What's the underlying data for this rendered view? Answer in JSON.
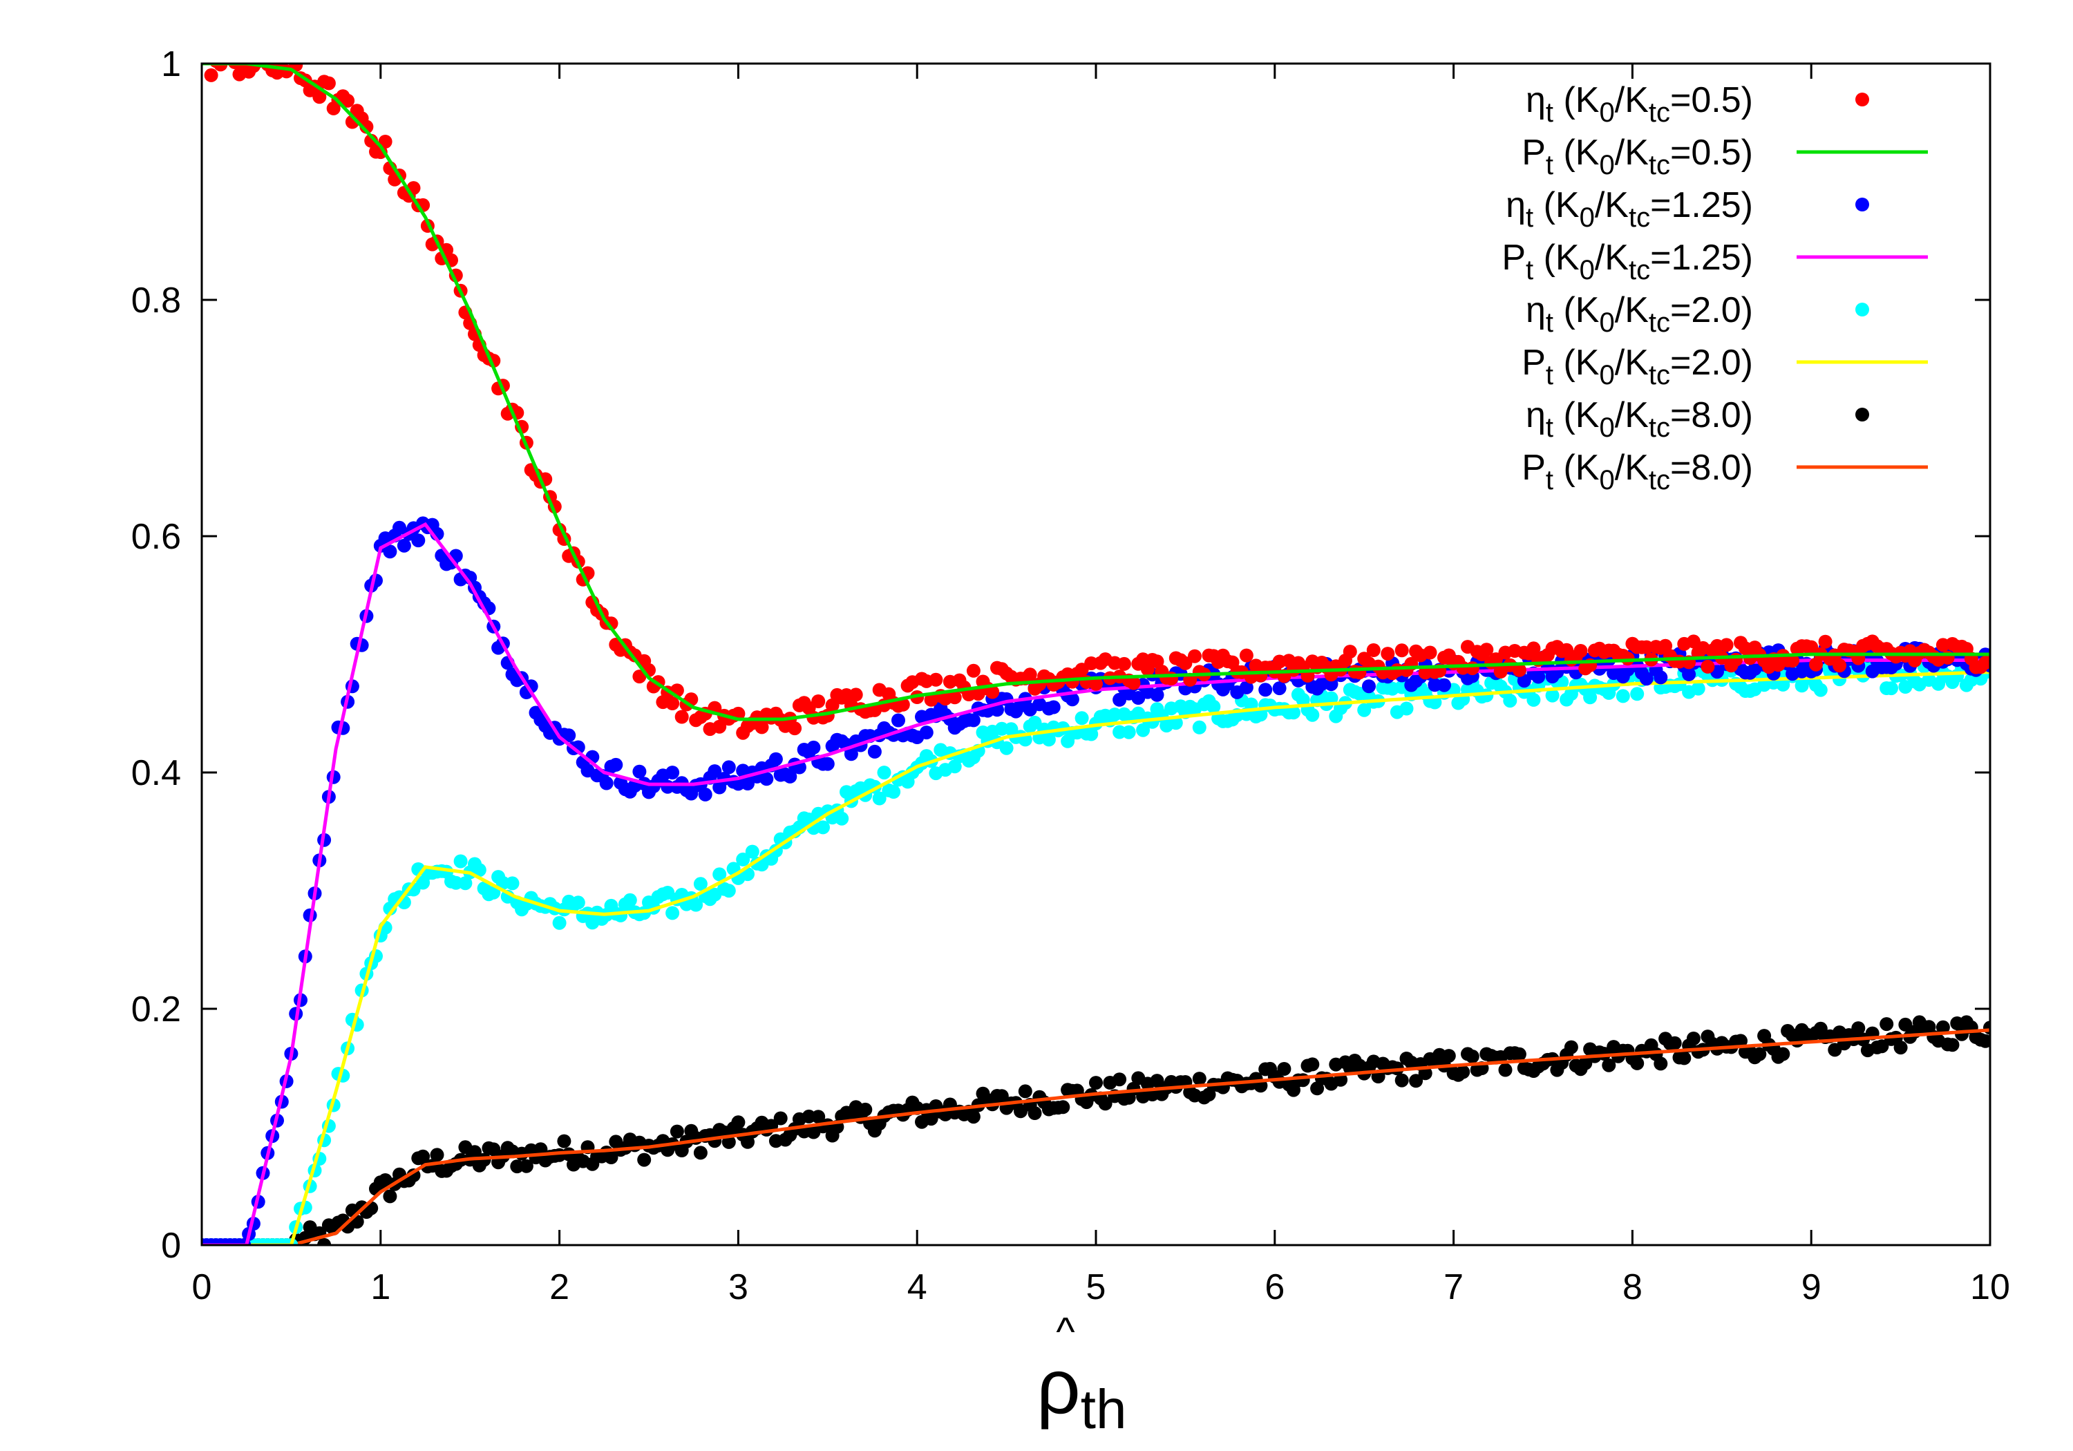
{
  "chart_data": {
    "type": "scatter",
    "title": "",
    "xlabel": {
      "hat": "^",
      "main": "ρ",
      "sub": "th"
    },
    "ylabel": "",
    "xlim": [
      0,
      10
    ],
    "ylim": [
      0,
      1
    ],
    "grid": false,
    "legend_position": "top-right",
    "x_ticks": [
      "0",
      "1",
      "2",
      "3",
      "4",
      "5",
      "6",
      "7",
      "8",
      "9",
      "10"
    ],
    "y_ticks": [
      "0",
      "0.2",
      "0.4",
      "0.6",
      "0.8",
      "1"
    ],
    "x": [
      0,
      0.25,
      0.5,
      0.75,
      1,
      1.25,
      1.5,
      1.75,
      2,
      2.25,
      2.5,
      2.75,
      3,
      3.25,
      3.5,
      4,
      4.5,
      5,
      6,
      7,
      8,
      9,
      10
    ],
    "series": [
      {
        "name": "η_t (K_0/K_tc=0.5)",
        "legend": {
          "pre": "η",
          "sub1": "t",
          "mid": " (K",
          "sub2": "0",
          "slash": "/K",
          "sub3": "tc",
          "post": "=0.5)"
        },
        "kind": "points",
        "color": "#ff0000",
        "values": [
          1.0,
          1.0,
          0.995,
          0.97,
          0.93,
          0.87,
          0.79,
          0.7,
          0.61,
          0.53,
          0.48,
          0.45,
          0.44,
          0.445,
          0.455,
          0.47,
          0.48,
          0.485,
          0.49,
          0.495,
          0.5,
          0.5,
          0.5
        ]
      },
      {
        "name": "P_t (K_0/K_tc=0.5)",
        "legend": {
          "pre": "P",
          "sub1": "t",
          "mid": " (K",
          "sub2": "0",
          "slash": "/K",
          "sub3": "tc",
          "post": "=0.5)"
        },
        "kind": "line",
        "color": "#00e000",
        "values": [
          1.0,
          1.0,
          0.995,
          0.97,
          0.93,
          0.87,
          0.79,
          0.7,
          0.61,
          0.53,
          0.48,
          0.455,
          0.445,
          0.445,
          0.45,
          0.465,
          0.475,
          0.48,
          0.485,
          0.49,
          0.495,
          0.5,
          0.5
        ]
      },
      {
        "name": "η_t (K_0/K_tc=1.25)",
        "legend": {
          "pre": "η",
          "sub1": "t",
          "mid": " (K",
          "sub2": "0",
          "slash": "/K",
          "sub3": "tc",
          "post": "=1.25)"
        },
        "kind": "points",
        "color": "#0000ff",
        "values": [
          0.0,
          0.0,
          0.16,
          0.42,
          0.59,
          0.61,
          0.56,
          0.49,
          0.43,
          0.4,
          0.39,
          0.39,
          0.395,
          0.405,
          0.415,
          0.44,
          0.46,
          0.47,
          0.48,
          0.485,
          0.49,
          0.495,
          0.495
        ]
      },
      {
        "name": "P_t (K_0/K_tc=1.25)",
        "legend": {
          "pre": "P",
          "sub1": "t",
          "mid": " (K",
          "sub2": "0",
          "slash": "/K",
          "sub3": "tc",
          "post": "=1.25)"
        },
        "kind": "line",
        "color": "#ff00ff",
        "values": [
          0.0,
          0.0,
          0.16,
          0.42,
          0.59,
          0.61,
          0.56,
          0.49,
          0.43,
          0.4,
          0.39,
          0.39,
          0.395,
          0.405,
          0.415,
          0.44,
          0.46,
          0.47,
          0.48,
          0.485,
          0.49,
          0.495,
          0.495
        ]
      },
      {
        "name": "η_t (K_0/K_tc=2.0)",
        "legend": {
          "pre": "η",
          "sub1": "t",
          "mid": " (K",
          "sub2": "0",
          "slash": "/K",
          "sub3": "tc",
          "post": "=2.0)"
        },
        "kind": "points",
        "color": "#00ffff",
        "values": [
          0.0,
          0.0,
          0.0,
          0.13,
          0.27,
          0.32,
          0.315,
          0.295,
          0.283,
          0.28,
          0.283,
          0.295,
          0.315,
          0.34,
          0.365,
          0.405,
          0.43,
          0.44,
          0.455,
          0.465,
          0.475,
          0.48,
          0.485
        ]
      },
      {
        "name": "P_t (K_0/K_tc=2.0)",
        "legend": {
          "pre": "P",
          "sub1": "t",
          "mid": " (K",
          "sub2": "0",
          "slash": "/K",
          "sub3": "tc",
          "post": "=2.0)"
        },
        "kind": "line",
        "color": "#ffff00",
        "values": [
          0.0,
          0.0,
          0.0,
          0.13,
          0.27,
          0.32,
          0.315,
          0.295,
          0.283,
          0.28,
          0.283,
          0.295,
          0.315,
          0.34,
          0.365,
          0.405,
          0.43,
          0.44,
          0.455,
          0.465,
          0.475,
          0.48,
          0.485
        ]
      },
      {
        "name": "η_t (K_0/K_tc=8.0)",
        "legend": {
          "pre": "η",
          "sub1": "t",
          "mid": " (K",
          "sub2": "0",
          "slash": "/K",
          "sub3": "tc",
          "post": "=8.0)"
        },
        "kind": "points",
        "color": "#000000",
        "values": [
          0.0,
          0.0,
          0.0,
          0.01,
          0.045,
          0.068,
          0.073,
          0.075,
          0.078,
          0.08,
          0.083,
          0.088,
          0.093,
          0.098,
          0.103,
          0.112,
          0.12,
          0.128,
          0.14,
          0.152,
          0.162,
          0.172,
          0.182
        ]
      },
      {
        "name": "P_t (K_0/K_tc=8.0)",
        "legend": {
          "pre": "P",
          "sub1": "t",
          "mid": " (K",
          "sub2": "0",
          "slash": "/K",
          "sub3": "tc",
          "post": "=8.0)"
        },
        "kind": "line",
        "color": "#ff4500",
        "values": [
          0.0,
          0.0,
          0.0,
          0.01,
          0.045,
          0.068,
          0.073,
          0.075,
          0.078,
          0.08,
          0.083,
          0.088,
          0.093,
          0.098,
          0.103,
          0.112,
          0.12,
          0.128,
          0.14,
          0.152,
          0.162,
          0.172,
          0.182
        ]
      }
    ]
  }
}
